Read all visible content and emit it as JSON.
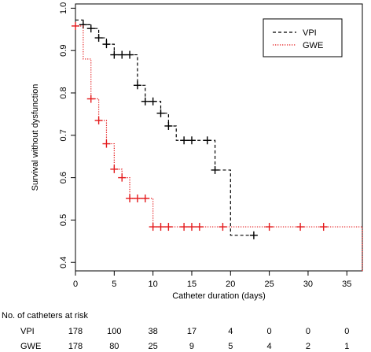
{
  "chart_data": {
    "type": "line",
    "subtype": "kaplan-meier step",
    "xlabel": "Catheter duration (days)",
    "ylabel": "Survival without dysfunction",
    "xlim": [
      0,
      37
    ],
    "ylim": [
      0.38,
      1.01
    ],
    "xticks": [
      0,
      5,
      10,
      15,
      20,
      25,
      30,
      35
    ],
    "yticks": [
      0.4,
      0.5,
      0.6,
      0.7,
      0.8,
      0.9,
      1.0
    ],
    "ytick_labels": [
      "0.4",
      "0.5",
      "0.6",
      "0.7",
      "0.8",
      "0.9",
      "1.0"
    ],
    "legend_position": "top-right",
    "series": [
      {
        "name": "VPI",
        "color": "#000000",
        "line_style": "dashed",
        "steps": [
          [
            0,
            0.972
          ],
          [
            1,
            0.961
          ],
          [
            2,
            0.952
          ],
          [
            3,
            0.93
          ],
          [
            4,
            0.915
          ],
          [
            5,
            0.89
          ],
          [
            8,
            0.818
          ],
          [
            9,
            0.78
          ],
          [
            11,
            0.752
          ],
          [
            12,
            0.722
          ],
          [
            13,
            0.688
          ],
          [
            18,
            0.618
          ],
          [
            20,
            0.464
          ],
          [
            23,
            0.464
          ]
        ],
        "censored": [
          [
            1,
            0.961
          ],
          [
            2,
            0.952
          ],
          [
            3,
            0.93
          ],
          [
            4,
            0.915
          ],
          [
            5,
            0.89
          ],
          [
            6,
            0.89
          ],
          [
            7,
            0.89
          ],
          [
            8,
            0.818
          ],
          [
            9,
            0.78
          ],
          [
            10,
            0.78
          ],
          [
            11,
            0.752
          ],
          [
            12,
            0.722
          ],
          [
            14,
            0.688
          ],
          [
            15,
            0.688
          ],
          [
            17,
            0.688
          ],
          [
            18,
            0.618
          ],
          [
            23,
            0.464
          ]
        ]
      },
      {
        "name": "GWE",
        "color": "#e41a1c",
        "line_style": "dotted",
        "steps": [
          [
            0,
            0.958
          ],
          [
            1,
            0.88
          ],
          [
            2,
            0.786
          ],
          [
            3,
            0.735
          ],
          [
            4,
            0.68
          ],
          [
            5,
            0.62
          ],
          [
            6,
            0.6
          ],
          [
            7,
            0.551
          ],
          [
            10,
            0.484
          ],
          [
            37,
            0.484
          ],
          [
            37,
            0.38
          ]
        ],
        "censored": [
          [
            0,
            0.958
          ],
          [
            2,
            0.786
          ],
          [
            3,
            0.735
          ],
          [
            4,
            0.68
          ],
          [
            5,
            0.62
          ],
          [
            6,
            0.6
          ],
          [
            7,
            0.551
          ],
          [
            8,
            0.551
          ],
          [
            9,
            0.551
          ],
          [
            10,
            0.484
          ],
          [
            11,
            0.484
          ],
          [
            12,
            0.484
          ],
          [
            14,
            0.484
          ],
          [
            15,
            0.484
          ],
          [
            16,
            0.484
          ],
          [
            19,
            0.484
          ],
          [
            25,
            0.484
          ],
          [
            29,
            0.484
          ],
          [
            32,
            0.484
          ]
        ]
      }
    ]
  },
  "risk_table": {
    "title": "No. of catheters at risk",
    "rows": [
      {
        "label": "VPI",
        "values": [
          "178",
          "100",
          "38",
          "17",
          "4",
          "0",
          "0",
          "0"
        ]
      },
      {
        "label": "GWE",
        "values": [
          "178",
          "80",
          "25",
          "9",
          "5",
          "4",
          "2",
          "1"
        ]
      }
    ],
    "at_days": [
      0,
      5,
      10,
      15,
      20,
      25,
      30,
      35
    ]
  }
}
